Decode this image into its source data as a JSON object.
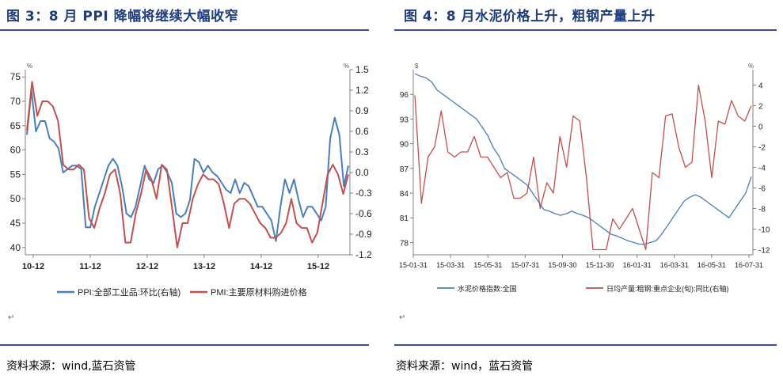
{
  "left": {
    "title": "图 3：8 月 PPI 降幅将继续大幅收窄",
    "source": "资料来源：wind,蓝石资管"
  },
  "right": {
    "title": "图 4：8 月水泥价格上升，粗钢产量上升",
    "source": "资料来源：wind，蓝石资管"
  },
  "chart_data": [
    {
      "type": "line",
      "left_axis_unit": "%",
      "right_axis_unit": "%",
      "y_left": {
        "ticks": [
          40,
          45,
          50,
          55,
          60,
          65,
          70,
          75
        ],
        "lim": [
          38.5,
          76.5
        ]
      },
      "y_right": {
        "ticks": [
          1.5,
          1.2,
          0.9,
          0.6,
          0.3,
          0.0,
          -0.3,
          -0.6,
          -0.9,
          -1.2
        ],
        "lim": [
          -1.2,
          1.5
        ]
      },
      "x_ticks": [
        "10-12",
        "11-12",
        "12-12",
        "13-12",
        "14-12",
        "15-12"
      ],
      "legend_placement": "bottom",
      "series": [
        {
          "name": "PPI:全部工业品:环比(右轴)",
          "axis": "right",
          "color": "#4a7ebb",
          "values": [
            0.55,
            1.2,
            0.6,
            0.75,
            0.75,
            0.5,
            0.45,
            0.35,
            0.0,
            0.05,
            0.1,
            0.1,
            0.05,
            -0.8,
            -0.8,
            -0.5,
            -0.3,
            -0.1,
            0.1,
            0.2,
            0.1,
            -0.2,
            -0.6,
            -0.65,
            -0.5,
            -0.2,
            0.1,
            -0.1,
            -0.15,
            0.05,
            0.1,
            0.0,
            -0.15,
            -0.6,
            -0.65,
            -0.6,
            -0.4,
            0.2,
            0.15,
            0.0,
            0.1,
            0.0,
            -0.05,
            -0.15,
            -0.25,
            -0.3,
            -0.1,
            -0.3,
            -0.15,
            -0.2,
            -0.35,
            -0.5,
            -0.5,
            -0.6,
            -0.7,
            -1.0,
            -0.5,
            -0.1,
            -0.3,
            -0.1,
            -0.4,
            -0.65,
            -0.5,
            -0.5,
            -0.6,
            -0.7,
            -0.5,
            0.5,
            0.8,
            0.55,
            -0.2,
            0.1
          ]
        },
        {
          "name": "PMI:主要原材料购进价格",
          "axis": "left",
          "color": "#c0504d",
          "values": [
            64,
            74,
            67,
            70,
            70,
            69,
            66,
            57,
            56,
            56,
            57,
            56,
            46,
            44,
            48,
            51,
            55,
            56,
            51,
            41,
            41,
            47,
            51,
            56,
            54,
            50,
            57,
            56,
            48,
            40,
            45,
            45,
            50,
            53,
            55,
            54,
            54,
            53,
            49,
            44,
            49,
            50,
            50,
            49,
            47,
            45,
            44,
            42,
            42,
            43,
            45,
            50,
            45,
            44,
            44,
            41,
            43,
            49,
            55,
            57,
            55,
            51,
            55
          ]
        }
      ]
    },
    {
      "type": "line",
      "left_axis_unit": "$",
      "right_axis_unit": "%",
      "y_left": {
        "ticks": [
          78,
          81,
          84,
          87,
          90,
          93,
          96
        ],
        "lim": [
          76.5,
          99
        ]
      },
      "y_right": {
        "ticks": [
          4,
          2,
          0,
          -2,
          -4,
          -6,
          -8,
          -10,
          -12
        ],
        "lim": [
          -12.5,
          5.5
        ]
      },
      "x_ticks": [
        "15-01-31",
        "15-03-31",
        "15-05-31",
        "15-07-31",
        "15-09-30",
        "15-11-30",
        "16-01-31",
        "16-03-31",
        "16-05-31",
        "16-07-31"
      ],
      "legend_placement": "bottom",
      "series": [
        {
          "name": "水泥价格指数:全国",
          "axis": "left",
          "color": "#4a7ebb",
          "values": [
            98.5,
            98.2,
            98.0,
            97.5,
            96.5,
            96.0,
            95.5,
            95.0,
            94.5,
            94.0,
            93.5,
            93.0,
            92.0,
            91.0,
            89.5,
            88.5,
            87.0,
            86.5,
            86.0,
            85.5,
            85.0,
            84.0,
            83.0,
            82.0,
            81.8,
            81.5,
            81.3,
            81.5,
            81.8,
            81.5,
            81.3,
            81.0,
            80.5,
            80.0,
            79.5,
            79.0,
            78.8,
            78.5,
            78.2,
            78.0,
            77.8,
            77.8,
            78.0,
            78.2,
            79.0,
            80.0,
            81.0,
            82.0,
            83.0,
            83.5,
            83.8,
            83.5,
            83.0,
            82.5,
            82.0,
            81.5,
            81.0,
            82.0,
            83.0,
            84.0,
            86.0
          ]
        },
        {
          "name": "日均产量:粗钢:重点企业(旬):同比(右轴)",
          "axis": "right",
          "color": "#c0504d",
          "values": [
            3,
            -7.5,
            -3,
            -2,
            1.5,
            -2.5,
            -3,
            -2.5,
            -2.5,
            -1,
            -3,
            -3,
            -4,
            -5,
            -4.5,
            -7,
            -7,
            -6.5,
            -3,
            -8,
            -5.5,
            -6.5,
            -1,
            -4,
            1,
            0.5,
            -5,
            -12,
            -12,
            -12,
            -9,
            -10,
            -9,
            -8,
            -10,
            -12,
            -4.5,
            -5,
            1,
            1.2,
            -2,
            -4,
            -3.5,
            4,
            0.5,
            -5,
            0.5,
            0.2,
            2.5,
            1,
            0.5,
            2
          ]
        }
      ]
    }
  ]
}
